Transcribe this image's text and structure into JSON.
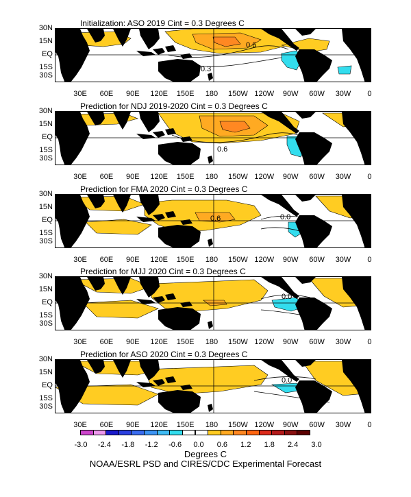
{
  "panels": [
    {
      "title": "Initialization: ASO 2019   Cint = 0.3 Degrees C",
      "labels": [
        "0.6",
        "0.3"
      ]
    },
    {
      "title": "Prediction for NDJ 2019-2020  Cint = 0.3 Degrees C",
      "labels": [
        "0.6"
      ]
    },
    {
      "title": "Prediction for FMA 2020  Cint = 0.3 Degrees C",
      "labels": [
        "0.6",
        "0.0"
      ]
    },
    {
      "title": "Prediction for MJJ 2020  Cint = 0.3 Degrees C",
      "labels": [
        "0.0"
      ]
    },
    {
      "title": "Prediction for ASO 2020  Cint = 0.3 Degrees C",
      "labels": [
        "0.0"
      ]
    }
  ],
  "lat_labels": [
    "30N",
    "15N",
    "EQ",
    "15S",
    "30S"
  ],
  "lon_labels": [
    "30E",
    "60E",
    "90E",
    "120E",
    "150E",
    "180",
    "150W",
    "120W",
    "90W",
    "60W",
    "30W",
    "0"
  ],
  "colorbar": {
    "labels": [
      "-3.0",
      "-2.4",
      "-1.8",
      "-1.2",
      "-0.6",
      "0.0",
      "0.6",
      "1.2",
      "1.8",
      "2.4",
      "3.0"
    ],
    "colors": [
      "#cc44cc",
      "#ee99ee",
      "#1a1acc",
      "#2b3fe0",
      "#3a6cf0",
      "#3d95f5",
      "#3fbcf5",
      "#33ddee",
      "#ffffff",
      "#ffffff",
      "#ffcc22",
      "#ffaa22",
      "#ff8822",
      "#ff6611",
      "#dd2a1a",
      "#b41a1a",
      "#8a1010",
      "#5c0000"
    ],
    "units": "Degrees C"
  },
  "credit": "NOAA/ESRL PSD and CIRES/CDC Experimental Forecast",
  "colors": {
    "warm": "#ffcc22",
    "warm2": "#ffaa22",
    "warm3": "#ff8822",
    "cool": "#33ddee",
    "cool2": "#3fbcf5",
    "land": "#000000"
  }
}
